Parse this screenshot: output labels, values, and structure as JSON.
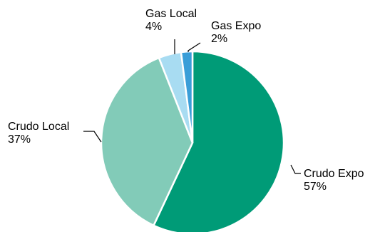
{
  "chart_data": {
    "type": "pie",
    "title": "",
    "start_angle_deg": 0,
    "direction": "clockwise",
    "slices": [
      {
        "label": "Crudo Expo",
        "value": 57,
        "value_label": "57%",
        "color": "#009b77"
      },
      {
        "label": "Crudo Local",
        "value": 37,
        "value_label": "37%",
        "color": "#82cbb8"
      },
      {
        "label": "Gas Local",
        "value": 4,
        "value_label": "4%",
        "color": "#a8dcf2"
      },
      {
        "label": "Gas Expo",
        "value": 2,
        "value_label": "2%",
        "color": "#3a9ed8"
      }
    ]
  }
}
